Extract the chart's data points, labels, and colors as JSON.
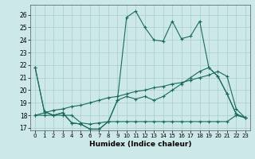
{
  "xlabel": "Humidex (Indice chaleur)",
  "bg_color": "#cce8e8",
  "grid_color": "#aacccc",
  "line_color": "#1a6b5a",
  "xlim": [
    -0.5,
    23.5
  ],
  "ylim": [
    16.8,
    26.8
  ],
  "x_ticks": [
    0,
    1,
    2,
    3,
    4,
    5,
    6,
    7,
    8,
    9,
    10,
    11,
    12,
    13,
    14,
    15,
    16,
    17,
    18,
    19,
    20,
    21,
    22,
    23
  ],
  "y_ticks": [
    17,
    18,
    19,
    20,
    21,
    22,
    23,
    24,
    25,
    26
  ],
  "series": [
    [
      21.8,
      18.3,
      18.0,
      18.2,
      17.4,
      17.3,
      16.9,
      16.9,
      17.5,
      19.2,
      25.8,
      26.3,
      25.0,
      24.0,
      23.9,
      25.5,
      24.1,
      24.3,
      25.5,
      21.8,
      21.1,
      19.7,
      18.1,
      17.8
    ],
    [
      21.8,
      18.3,
      18.0,
      18.2,
      17.4,
      17.3,
      16.9,
      16.9,
      17.5,
      19.2,
      19.5,
      19.3,
      19.5,
      19.2,
      19.5,
      20.0,
      20.5,
      21.0,
      21.5,
      21.8,
      21.1,
      19.7,
      18.1,
      17.8
    ],
    [
      18.0,
      18.0,
      18.0,
      18.0,
      18.0,
      17.4,
      17.3,
      17.4,
      17.5,
      17.5,
      17.5,
      17.5,
      17.5,
      17.5,
      17.5,
      17.5,
      17.5,
      17.5,
      17.5,
      17.5,
      17.5,
      17.5,
      18.0,
      17.8
    ],
    [
      18.0,
      18.2,
      18.4,
      18.5,
      18.7,
      18.8,
      19.0,
      19.2,
      19.4,
      19.5,
      19.7,
      19.9,
      20.0,
      20.2,
      20.3,
      20.5,
      20.6,
      20.8,
      21.0,
      21.2,
      21.5,
      21.1,
      18.5,
      17.8
    ]
  ]
}
